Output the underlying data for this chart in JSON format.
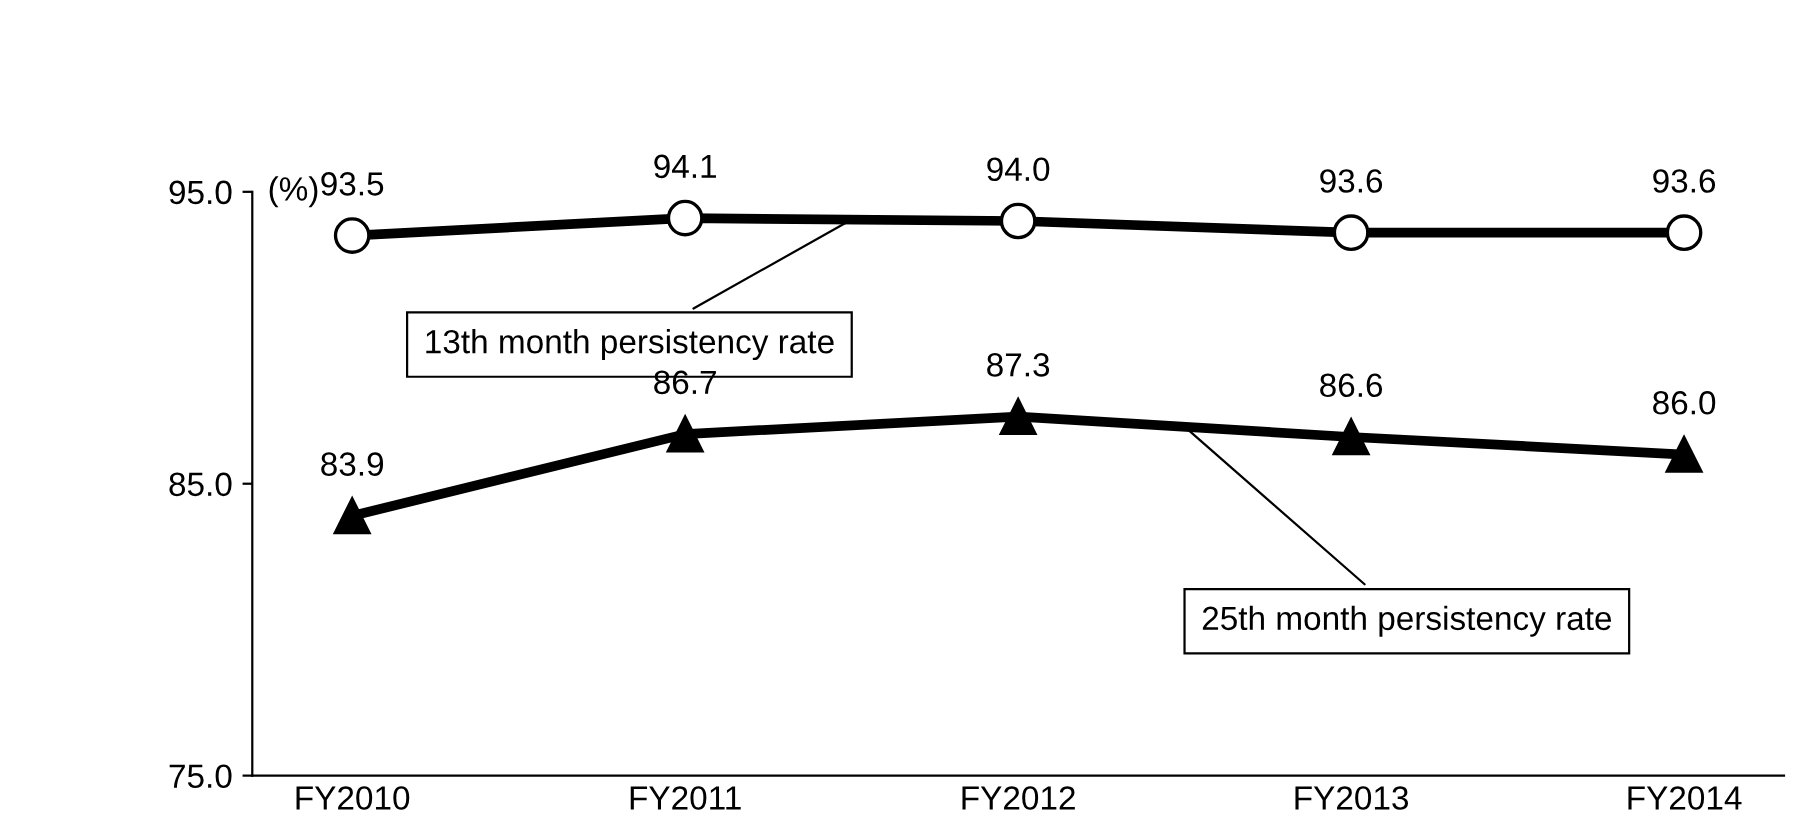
{
  "chart_data": {
    "type": "line",
    "ylabel": "(%)",
    "categories": [
      "FY2010",
      "FY2011",
      "FY2012",
      "FY2013",
      "FY2014"
    ],
    "series": [
      {
        "name": "13th month persistency rate",
        "color": "#000000",
        "marker": "circle",
        "values": [
          93.5,
          94.1,
          94.0,
          93.6,
          93.6
        ],
        "value_labels": [
          "93.5",
          "94.1",
          "94.0",
          "93.6",
          "93.6"
        ]
      },
      {
        "name": "25th month persistency rate",
        "color": "#000000",
        "marker": "triangle",
        "values": [
          83.9,
          86.7,
          87.3,
          86.6,
          86.0
        ],
        "value_labels": [
          "83.9",
          "86.7",
          "87.3",
          "86.6",
          "86.0"
        ]
      }
    ],
    "ylim": [
      75,
      95
    ],
    "yticks": [
      {
        "value": 75,
        "label": "75.0"
      },
      {
        "value": 85,
        "label": "85.0"
      },
      {
        "value": 95,
        "label": "95.0"
      }
    ],
    "grid": false,
    "line_style": "solid"
  }
}
